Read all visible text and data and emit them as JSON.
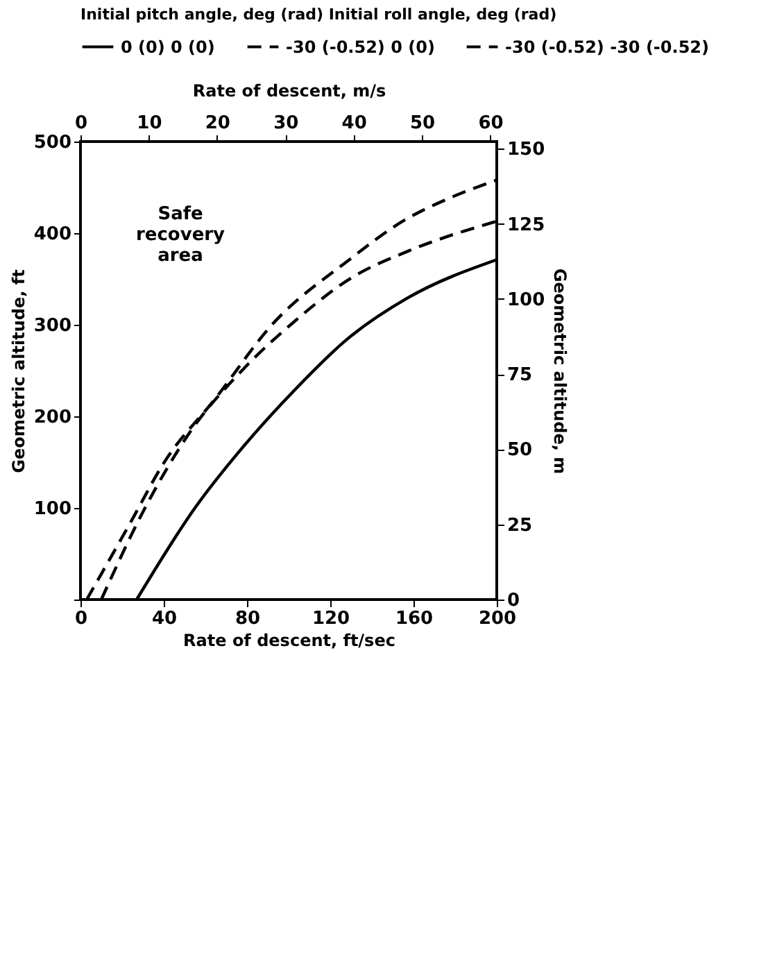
{
  "chart_data": {
    "type": "line",
    "xlabel": "Rate of descent, ft/sec",
    "x2label": "Rate of descent, m/s",
    "ylabel": "Geometric altitude, ft",
    "y2label": "Geometric altitude, m",
    "legend_title": "Initial pitch angle, deg (rad)   Initial roll angle, deg (rad)",
    "xlim": [
      0,
      200
    ],
    "xticks": [
      0,
      40,
      80,
      120,
      160,
      200
    ],
    "x2lim": [
      0,
      60.96
    ],
    "x2ticks": [
      0,
      10,
      20,
      30,
      40,
      50,
      60
    ],
    "ylim": [
      0,
      500
    ],
    "yticks": [
      {
        "value": 0,
        "label": null
      },
      100,
      200,
      300,
      400,
      500
    ],
    "y2lim": [
      0,
      152.4
    ],
    "y2ticks": [
      0,
      25,
      50,
      75,
      100,
      125,
      150
    ],
    "grid": false,
    "legend": "top",
    "marker": "none",
    "annotations": [
      "Safe recovery area"
    ],
    "series": [
      {
        "name": "0 (0)   0 (0)",
        "color": "#000000",
        "line_style": "solid",
        "x": [
          27,
          55,
          79,
          103,
          128,
          157,
          200
        ],
        "values": [
          0,
          100,
          169,
          229,
          284,
          329,
          371
        ]
      },
      {
        "name": "-30 (-0.52)   0 (0)",
        "color": "#000000",
        "line_style": "dashed",
        "x": [
          10,
          31,
          53,
          78,
          103,
          130,
          157,
          200
        ],
        "values": [
          0,
          100,
          184,
          251,
          304,
          351,
          380,
          413
        ]
      },
      {
        "name": "-30 (-0.52)   -30 (-0.52)",
        "color": "#000000",
        "line_style": "dashed",
        "x": [
          3,
          24,
          40,
          65,
          92,
          128,
          157,
          175,
          200
        ],
        "values": [
          0,
          84,
          149,
          220,
          300,
          369,
          416,
          436,
          458
        ]
      }
    ]
  }
}
